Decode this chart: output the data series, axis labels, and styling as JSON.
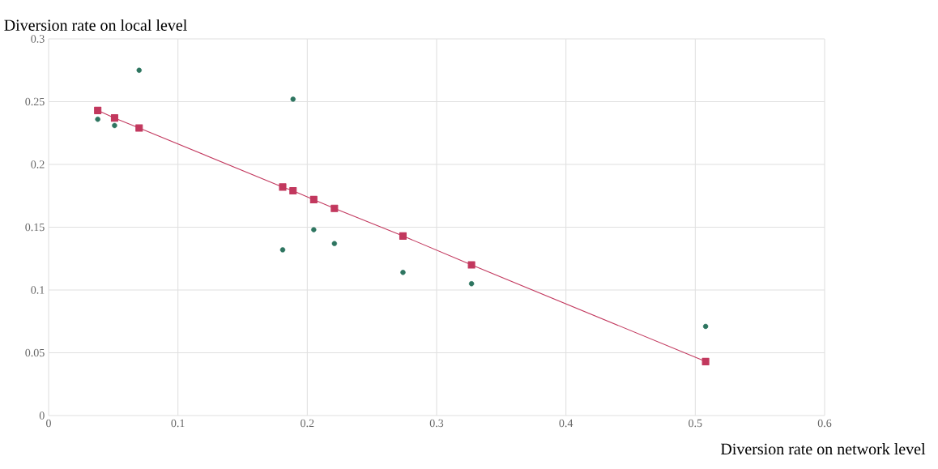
{
  "chart_data": {
    "type": "scatter",
    "xlabel": "Diversion rate on network level",
    "ylabel": "Diversion rate on local level",
    "series": [
      {
        "marker": "circle",
        "color": "#2e7560",
        "x": [
          0.038,
          0.051,
          0.07,
          0.189,
          0.181,
          0.205,
          0.221,
          0.274,
          0.327,
          0.508
        ],
        "values": [
          0.236,
          0.231,
          0.275,
          0.252,
          0.132,
          0.148,
          0.137,
          0.114,
          0.105,
          0.071
        ]
      },
      {
        "type": "line",
        "marker": "square",
        "line_style": "solid",
        "color": "#c2385e",
        "x": [
          0.038,
          0.051,
          0.07,
          0.181,
          0.189,
          0.205,
          0.221,
          0.274,
          0.327,
          0.508
        ],
        "values": [
          0.243,
          0.237,
          0.229,
          0.182,
          0.179,
          0.172,
          0.165,
          0.143,
          0.12,
          0.043
        ]
      }
    ],
    "xlim": [
      0,
      0.6
    ],
    "ylim": [
      0,
      0.3
    ],
    "xticks": [
      0,
      0.1,
      0.2,
      0.3,
      0.4,
      0.5,
      0.6
    ],
    "yticks": [
      0,
      0.05,
      0.1,
      0.15,
      0.2,
      0.25,
      0.3
    ],
    "grid": true
  }
}
